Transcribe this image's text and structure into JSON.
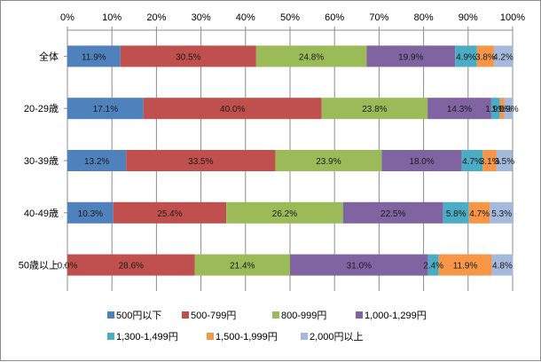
{
  "chart_data": {
    "type": "bar",
    "orientation": "horizontal",
    "stacked": true,
    "percent_stacked": true,
    "categories": [
      "全体",
      "20-29歳",
      "30-39歳",
      "40-49歳",
      "50歳以上"
    ],
    "series": [
      {
        "name": "500円以下",
        "color": "#4f81bd",
        "values": [
          11.9,
          17.1,
          13.2,
          10.3,
          0.0
        ]
      },
      {
        "name": "500-799円",
        "color": "#c0504d",
        "values": [
          30.5,
          40.0,
          33.5,
          25.4,
          28.6
        ]
      },
      {
        "name": "800-999円",
        "color": "#9bbb59",
        "values": [
          24.8,
          23.8,
          23.9,
          26.2,
          21.4
        ]
      },
      {
        "name": "1,000-1,299円",
        "color": "#8064a2",
        "values": [
          19.9,
          14.3,
          18.0,
          22.5,
          31.0
        ]
      },
      {
        "name": "1,300-1,499円",
        "color": "#4bacc6",
        "values": [
          4.9,
          1.9,
          4.7,
          5.8,
          2.4
        ]
      },
      {
        "name": "1,500-1,999円",
        "color": "#f79646",
        "values": [
          3.8,
          1.0,
          3.1,
          4.7,
          11.9
        ]
      },
      {
        "name": "2,000円以上",
        "color": "#a5b9dd",
        "values": [
          4.2,
          1.9,
          3.5,
          5.3,
          4.8
        ]
      }
    ],
    "data_labels": [
      [
        "11.9%",
        "30.5%",
        "24.8%",
        "19.9%",
        "4.9%",
        "3.8%",
        "4.2%"
      ],
      [
        "17.1%",
        "40.0%",
        "23.8%",
        "14.3%",
        "1.9%",
        "1.0%",
        "1.9%"
      ],
      [
        "13.2%",
        "33.5%",
        "23.9%",
        "18.0%",
        "4.7%",
        "3.1%",
        "3.5%"
      ],
      [
        "10.3%",
        "25.4%",
        "26.2%",
        "22.5%",
        "5.8%",
        "4.7%",
        "5.3%"
      ],
      [
        "0.0%",
        "28.6%",
        "21.4%",
        "31.0%",
        "2.4%",
        "11.9%",
        "4.8%"
      ]
    ],
    "x_ticks": [
      "0%",
      "10%",
      "20%",
      "30%",
      "40%",
      "50%",
      "60%",
      "70%",
      "80%",
      "90%",
      "100%"
    ],
    "xlim": [
      0,
      100
    ],
    "title": "",
    "xlabel": "",
    "ylabel": "",
    "grid": "vertical",
    "axis_position": "top",
    "legend": "bottom",
    "colors": {
      "grid": "#8c8c8c",
      "border": "#8c8c8c",
      "label": "#1a1a1a"
    }
  }
}
